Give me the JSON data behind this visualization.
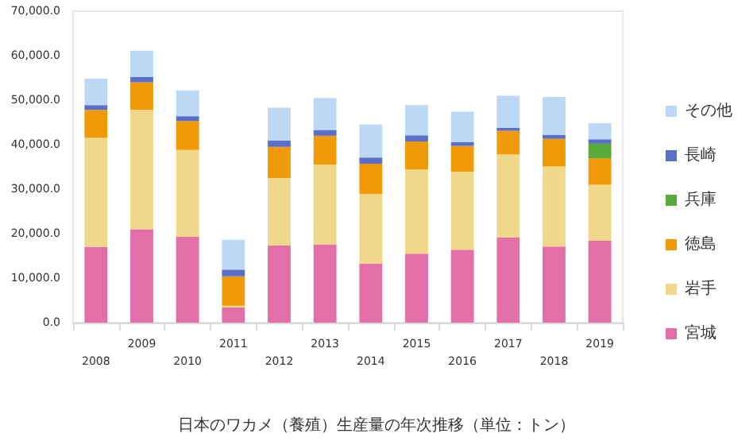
{
  "chart_data": {
    "type": "bar",
    "stacked": true,
    "title": "日本のワカメ（養殖）生産量の年次推移（単位：トン）",
    "categories": [
      "2008",
      "2009",
      "2010",
      "2011",
      "2012",
      "2013",
      "2014",
      "2015",
      "2016",
      "2017",
      "2018",
      "2019"
    ],
    "series": [
      {
        "name": "宮城",
        "color": "#e36fa8",
        "values": [
          17000,
          21000,
          19300,
          3400,
          17300,
          17600,
          13300,
          15500,
          16400,
          19100,
          17100,
          18400
        ]
      },
      {
        "name": "岩手",
        "color": "#f0d88a",
        "values": [
          24500,
          26800,
          19500,
          400,
          15200,
          17900,
          15600,
          18900,
          17500,
          18700,
          18000,
          12600
        ]
      },
      {
        "name": "徳島",
        "color": "#f09a0a",
        "values": [
          6300,
          6200,
          6500,
          6600,
          7000,
          6500,
          6800,
          6300,
          5800,
          5300,
          6200,
          5900
        ]
      },
      {
        "name": "兵庫",
        "color": "#5aaa3a",
        "values": [
          null,
          null,
          null,
          null,
          null,
          null,
          null,
          null,
          null,
          null,
          null,
          3300
        ]
      },
      {
        "name": "長崎",
        "color": "#5a6fc8",
        "values": [
          1100,
          1200,
          1100,
          1500,
          1400,
          1300,
          1400,
          1400,
          900,
          700,
          900,
          1000
        ]
      },
      {
        "name": "その他",
        "color": "#bcd8f5",
        "values": [
          5900,
          5900,
          5800,
          6700,
          7400,
          7200,
          7400,
          6800,
          6800,
          7200,
          8500,
          3600
        ]
      }
    ],
    "ylim": [
      0,
      70000
    ],
    "yticks": [
      {
        "value": 0,
        "label": "0.0"
      },
      {
        "value": 10000,
        "label": "10,000.0"
      },
      {
        "value": 20000,
        "label": "20,000.0"
      },
      {
        "value": 30000,
        "label": "30,000.0"
      },
      {
        "value": 40000,
        "label": "40,000.0"
      },
      {
        "value": 50000,
        "label": "50,000.0"
      },
      {
        "value": 60000,
        "label": "60,000.0"
      },
      {
        "value": 70000,
        "label": "70,000.0"
      }
    ],
    "grid": false,
    "legend": "right"
  }
}
